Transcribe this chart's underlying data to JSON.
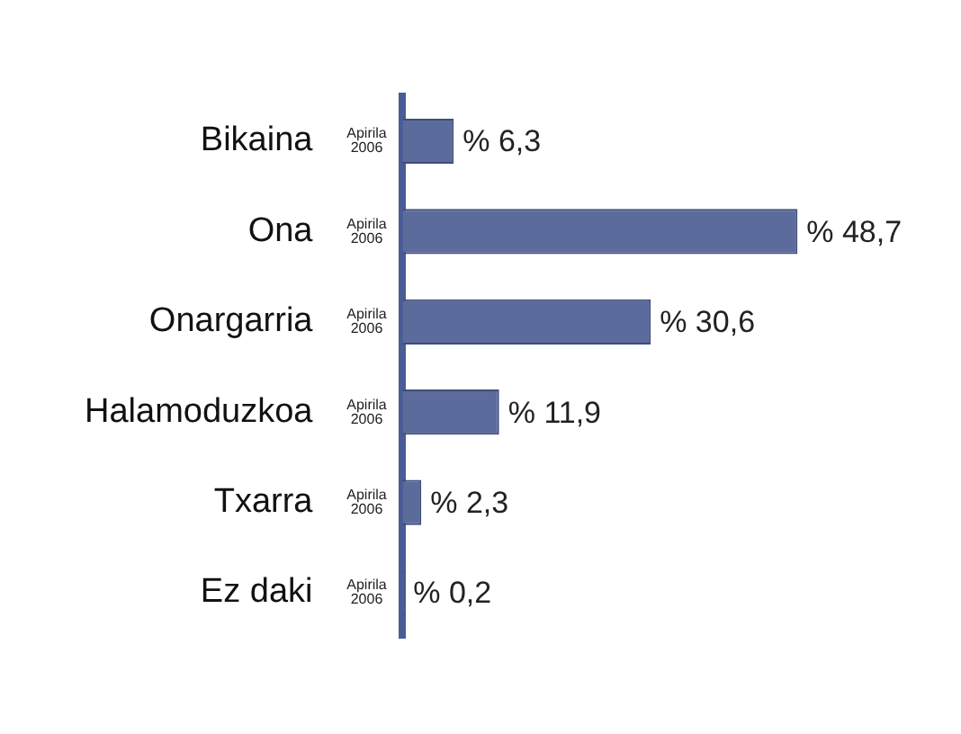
{
  "chart_data": {
    "type": "bar",
    "orientation": "horizontal",
    "categories": [
      "Bikaina",
      "Ona",
      "Onargarria",
      "Halamoduzkoa",
      "Txarra",
      "Ez daki"
    ],
    "series": [
      {
        "name": "Apirila 2006",
        "color": "#5b6b9b",
        "values": [
          6.3,
          48.7,
          30.6,
          11.9,
          2.3,
          0.2
        ],
        "value_labels": [
          "% 6,3",
          "% 48,7",
          "% 30,6",
          "% 11,9",
          "% 2,3",
          "% 0,2"
        ]
      }
    ],
    "legend": false
  }
}
